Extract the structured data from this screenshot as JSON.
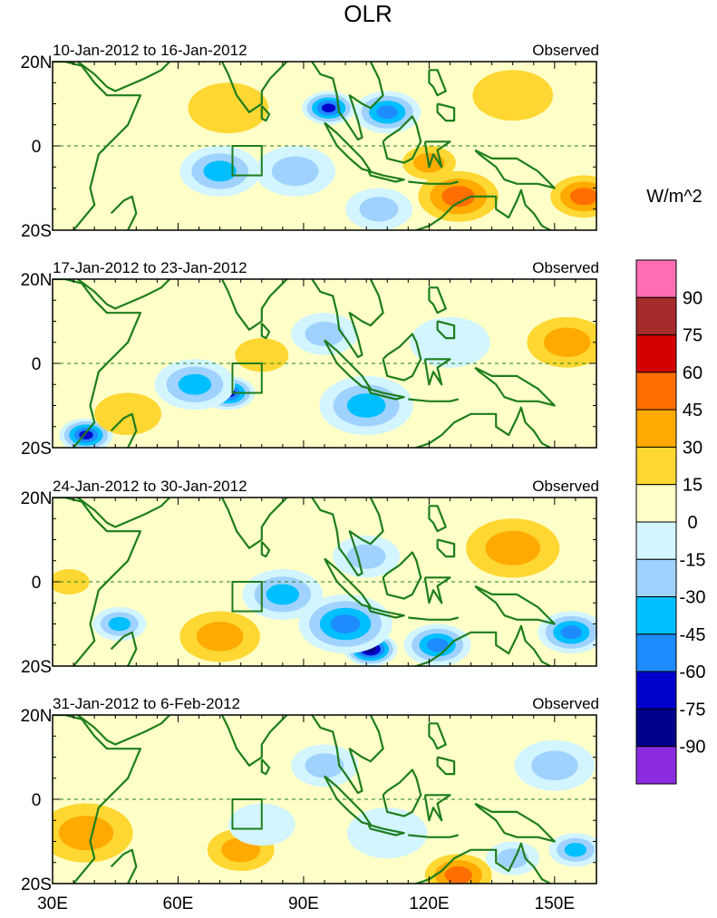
{
  "chart_data": {
    "type": "heatmap",
    "title": "OLR",
    "variable": "OLR",
    "units": "W/m^2",
    "x_ticks": [
      "30E",
      "60E",
      "90E",
      "120E",
      "150E"
    ],
    "x_tick_values": [
      30,
      60,
      90,
      120,
      150
    ],
    "y_ticks": [
      "20N",
      "0",
      "20S"
    ],
    "y_tick_values": [
      20,
      0,
      -20
    ],
    "xlim": [
      30,
      160
    ],
    "ylim": [
      -20,
      20
    ],
    "colorbar": {
      "labels": [
        "90",
        "75",
        "60",
        "45",
        "30",
        "15",
        "0",
        "-15",
        "-30",
        "-45",
        "-60",
        "-75",
        "-90"
      ],
      "colors": [
        "#ff6eb4",
        "#a52a2a",
        "#d20000",
        "#ff6e00",
        "#ffaa00",
        "#ffd732",
        "#ffffc8",
        "#d2f5ff",
        "#a0d2ff",
        "#00bfff",
        "#1e8cff",
        "#0000cd",
        "#00008b",
        "#8a2be2"
      ]
    },
    "panels": [
      {
        "period": "10-Jan-2012 to 16-Jan-2012",
        "label": "Observed",
        "anomalies": [
          {
            "lon": 96,
            "lat": 9,
            "value": -75,
            "r": 4
          },
          {
            "lon": 110,
            "lat": 8,
            "value": -60,
            "r": 5
          },
          {
            "lon": 70,
            "lat": -6,
            "value": -45,
            "r": 6
          },
          {
            "lon": 88,
            "lat": -6,
            "value": -30,
            "r": 6
          },
          {
            "lon": 108,
            "lat": -15,
            "value": -30,
            "r": 5
          },
          {
            "lon": 127,
            "lat": -12,
            "value": 45,
            "r": 6
          },
          {
            "lon": 157,
            "lat": -12,
            "value": 45,
            "r": 5
          },
          {
            "lon": 72,
            "lat": 9,
            "value": 15,
            "r": 6
          },
          {
            "lon": 140,
            "lat": 12,
            "value": 15,
            "r": 6
          },
          {
            "lon": 120,
            "lat": -4,
            "value": 30,
            "r": 4
          }
        ]
      },
      {
        "period": "17-Jan-2012 to 23-Jan-2012",
        "label": "Observed",
        "anomalies": [
          {
            "lon": 72,
            "lat": -7,
            "value": -75,
            "r": 4
          },
          {
            "lon": 38,
            "lat": -17,
            "value": -75,
            "r": 4
          },
          {
            "lon": 64,
            "lat": -5,
            "value": -45,
            "r": 6
          },
          {
            "lon": 105,
            "lat": -10,
            "value": -45,
            "r": 7
          },
          {
            "lon": 95,
            "lat": 7,
            "value": -30,
            "r": 5
          },
          {
            "lon": 125,
            "lat": 5,
            "value": -15,
            "r": 6
          },
          {
            "lon": 158,
            "lat": 3,
            "value": 60,
            "r": 3
          },
          {
            "lon": 153,
            "lat": 5,
            "value": 30,
            "r": 6
          },
          {
            "lon": 48,
            "lat": -12,
            "value": 15,
            "r": 5
          },
          {
            "lon": 80,
            "lat": 2,
            "value": 15,
            "r": 4
          }
        ]
      },
      {
        "period": "24-Jan-2012 to 30-Jan-2012",
        "label": "Observed",
        "anomalies": [
          {
            "lon": 106,
            "lat": -16,
            "value": -90,
            "r": 4
          },
          {
            "lon": 100,
            "lat": -10,
            "value": -60,
            "r": 7
          },
          {
            "lon": 122,
            "lat": -15,
            "value": -60,
            "r": 5
          },
          {
            "lon": 154,
            "lat": -12,
            "value": -60,
            "r": 5
          },
          {
            "lon": 85,
            "lat": -3,
            "value": -45,
            "r": 6
          },
          {
            "lon": 46,
            "lat": -10,
            "value": -45,
            "r": 4
          },
          {
            "lon": 105,
            "lat": 6,
            "value": -30,
            "r": 5
          },
          {
            "lon": 140,
            "lat": 8,
            "value": 30,
            "r": 7
          },
          {
            "lon": 70,
            "lat": -13,
            "value": 30,
            "r": 6
          },
          {
            "lon": 34,
            "lat": 0,
            "value": 15,
            "r": 3
          }
        ]
      },
      {
        "period": "31-Jan-2012 to 6-Feb-2012",
        "label": "Observed",
        "anomalies": [
          {
            "lon": 127,
            "lat": -18,
            "value": 45,
            "r": 5
          },
          {
            "lon": 38,
            "lat": -8,
            "value": 30,
            "r": 7
          },
          {
            "lon": 75,
            "lat": -12,
            "value": 30,
            "r": 5
          },
          {
            "lon": 150,
            "lat": 8,
            "value": -30,
            "r": 6
          },
          {
            "lon": 155,
            "lat": -12,
            "value": -45,
            "r": 4
          },
          {
            "lon": 95,
            "lat": 8,
            "value": -30,
            "r": 5
          },
          {
            "lon": 110,
            "lat": -8,
            "value": -15,
            "r": 6
          },
          {
            "lon": 80,
            "lat": -6,
            "value": -15,
            "r": 5
          },
          {
            "lon": 140,
            "lat": -14,
            "value": -30,
            "r": 4
          }
        ]
      }
    ]
  }
}
